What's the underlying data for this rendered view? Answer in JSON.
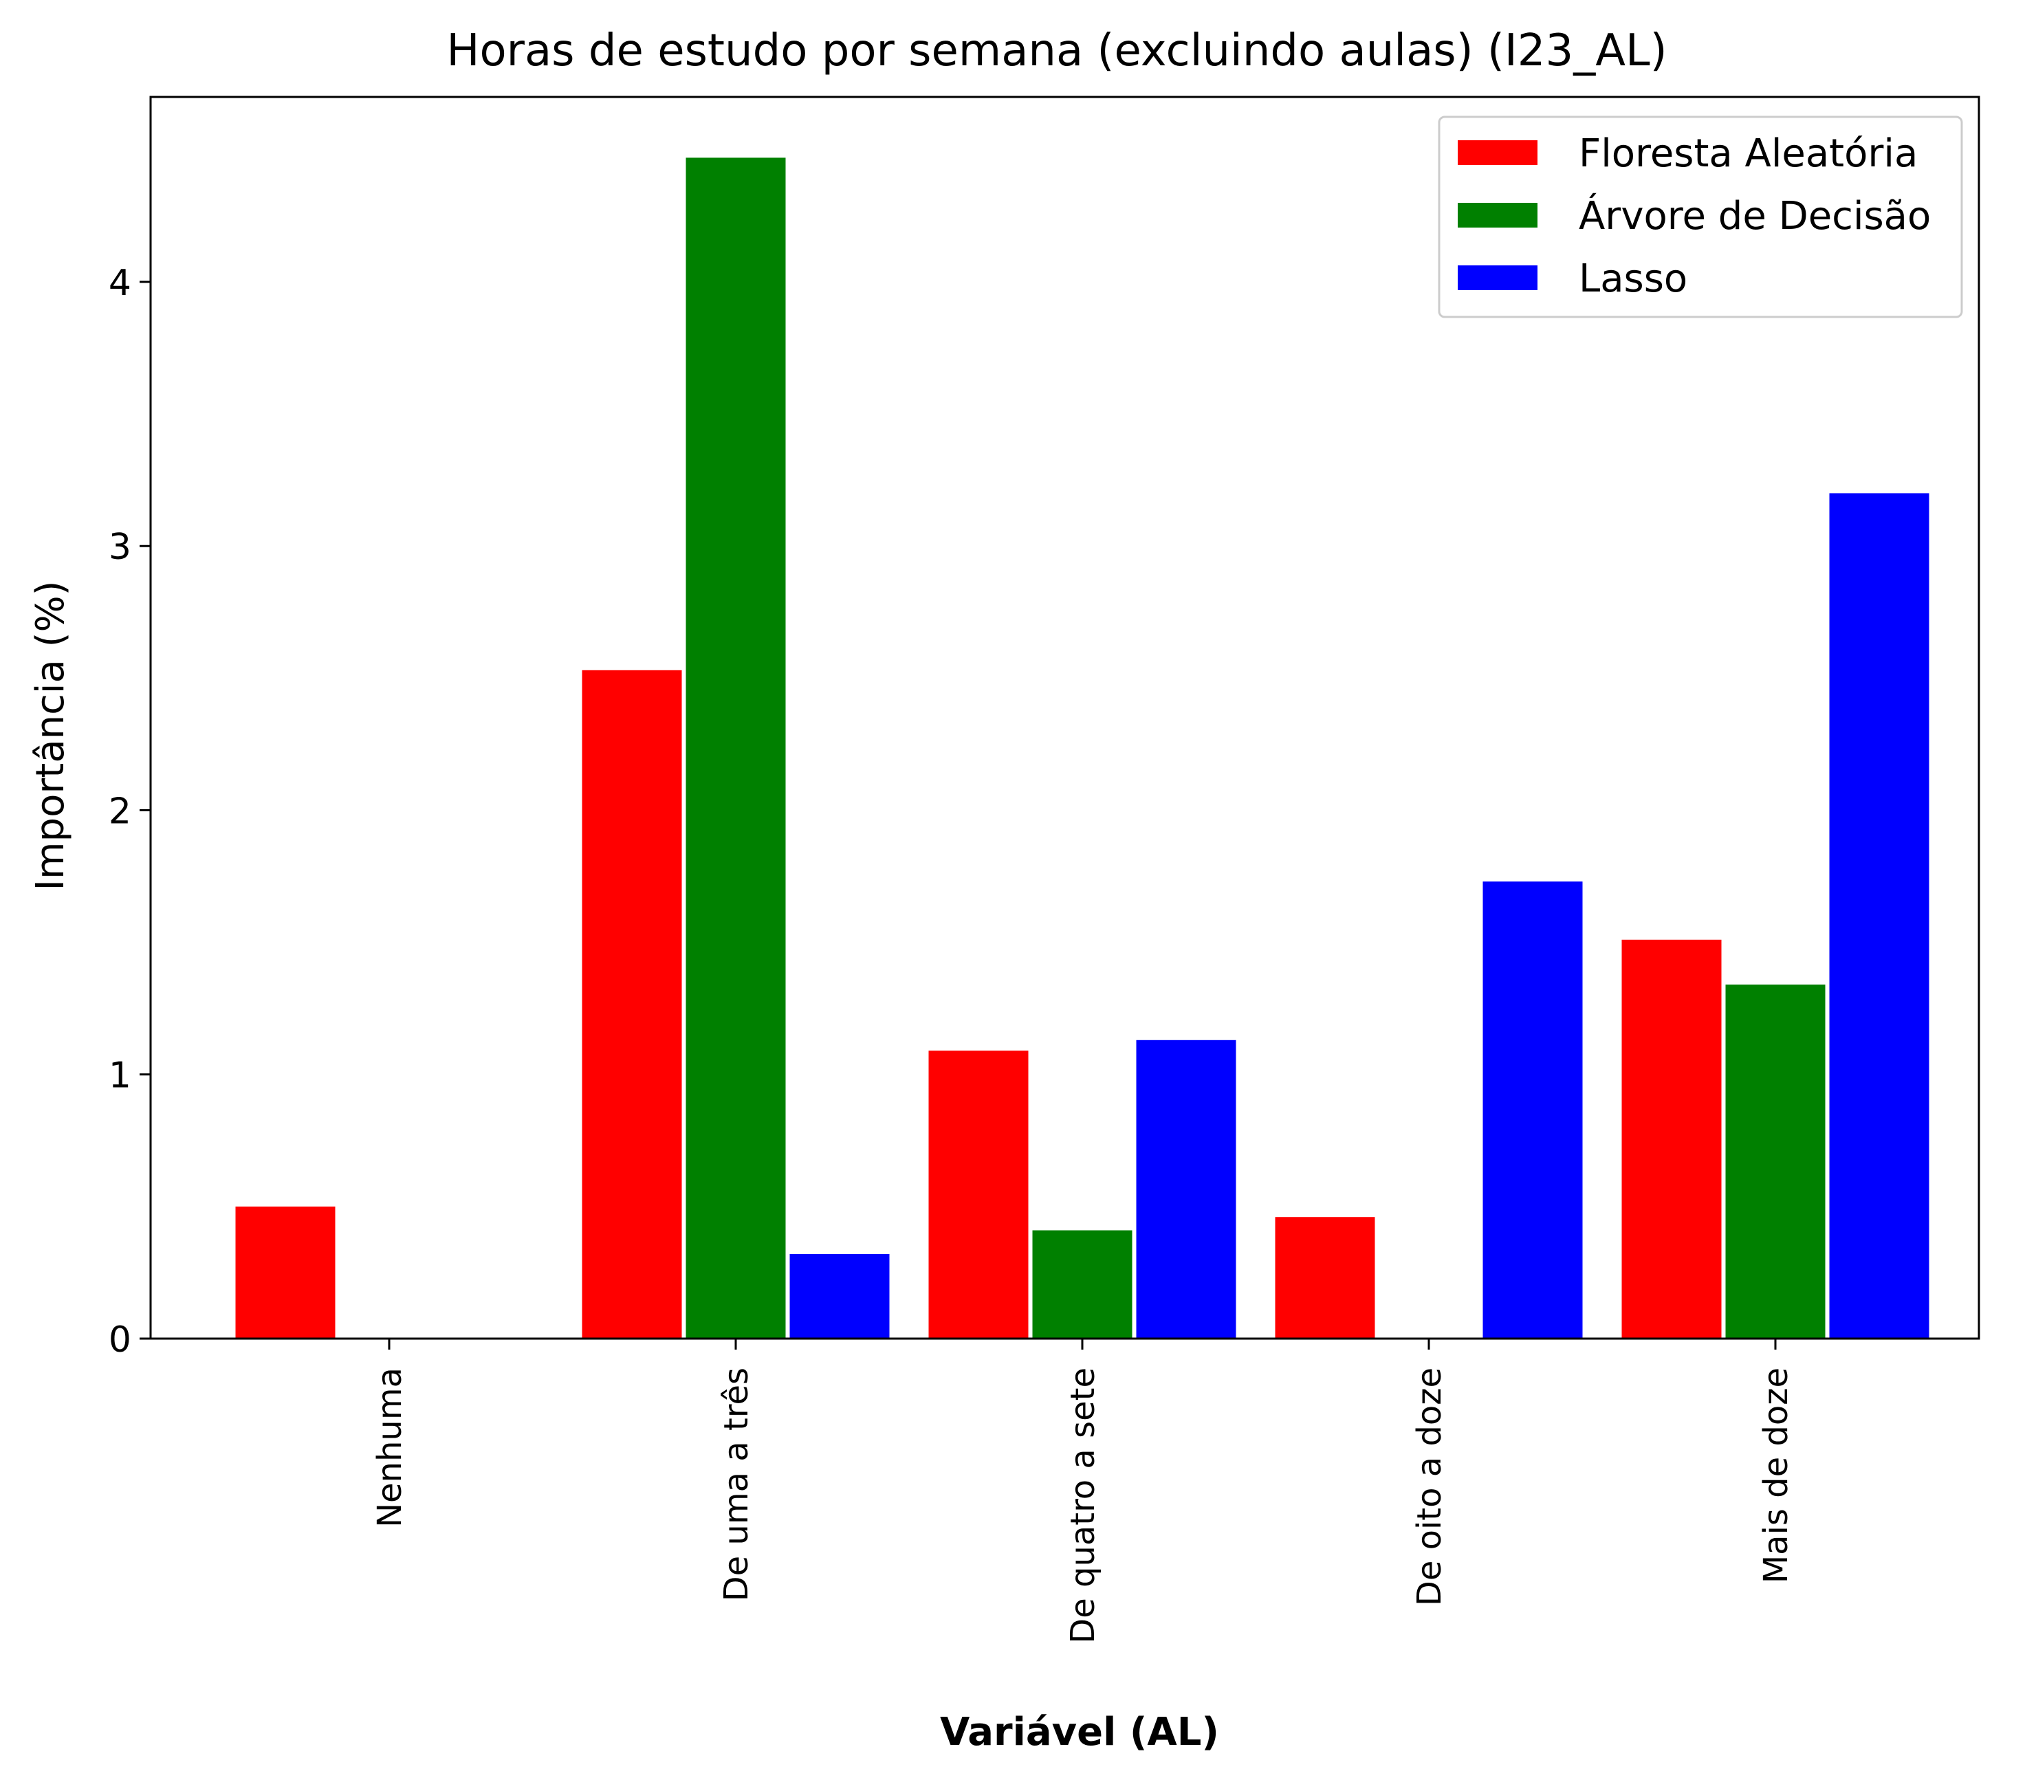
{
  "chart_data": {
    "type": "bar",
    "title": "Horas de estudo por semana (excluindo aulas) (I23_AL)",
    "xlabel": "Variável (AL)",
    "ylabel": "Importância (%)",
    "categories": [
      "Nenhuma",
      "De uma a três",
      "De quatro a sete",
      "De oito a doze",
      "Mais de doze"
    ],
    "yticks": [
      "0",
      "1",
      "2",
      "3",
      "4"
    ],
    "ylim": [
      0,
      4.7
    ],
    "legend_position": "top-right",
    "grid": false,
    "series": [
      {
        "name": "Floresta Aleatória",
        "color": "#ff0000",
        "values": [
          0.5,
          2.53,
          1.09,
          0.46,
          1.51
        ]
      },
      {
        "name": "Árvore de Decisão",
        "color": "#008000",
        "values": [
          0,
          4.47,
          0.41,
          0,
          1.34
        ]
      },
      {
        "name": "Lasso",
        "color": "#0000ff",
        "values": [
          0,
          0.32,
          1.13,
          1.73,
          3.2
        ]
      }
    ]
  }
}
